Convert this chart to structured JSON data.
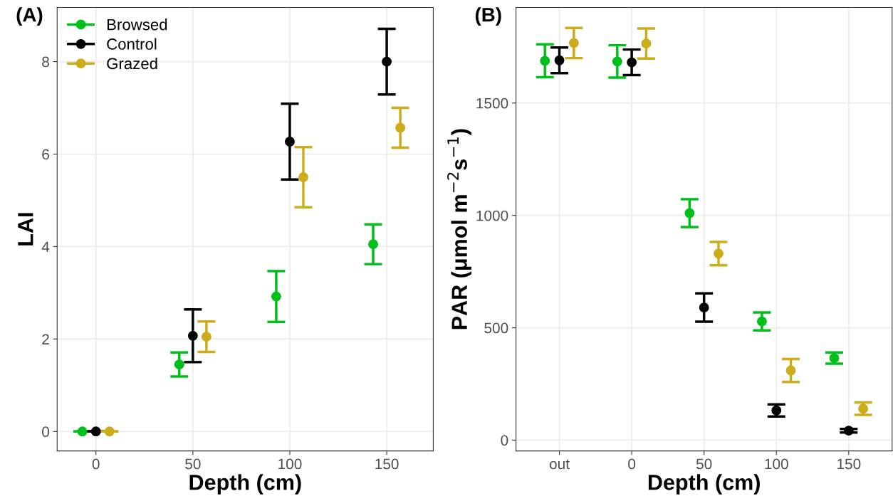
{
  "chart_data": [
    {
      "type": "scatter",
      "title": "(A)",
      "xlabel": "Depth (cm)",
      "ylabel": "LAI",
      "xlim": [
        -20,
        174
      ],
      "xticks": [
        0,
        50,
        100,
        150
      ],
      "ylim": [
        -0.42,
        9.17
      ],
      "yticks": [
        0,
        2,
        4,
        6,
        8
      ],
      "grid": true,
      "legend": "top left",
      "marker": "circle",
      "series": [
        {
          "name": "Browsed",
          "color": "#00bf1a",
          "x": [
            -7,
            43,
            93,
            143
          ],
          "values": [
            0,
            1.45,
            2.92,
            4.05
          ],
          "errors": [
            0,
            0.26,
            0.55,
            0.43
          ]
        },
        {
          "name": "Control",
          "color": "#000000",
          "x": [
            0,
            50,
            100,
            150
          ],
          "values": [
            0,
            2.07,
            6.27,
            8.0
          ],
          "errors": [
            0,
            0.57,
            0.82,
            0.71
          ]
        },
        {
          "name": "Grazed",
          "color": "#ccac1a",
          "x": [
            7,
            57,
            107,
            157
          ],
          "values": [
            0,
            2.05,
            5.5,
            6.57
          ],
          "errors": [
            0,
            0.33,
            0.65,
            0.43
          ]
        }
      ]
    },
    {
      "type": "scatter",
      "title": "(B)",
      "xlabel": "Depth (cm)",
      "ylabel": "PAR (μmol m$^{−2}$s$^{−1}$)",
      "categories": [
        "out",
        "0",
        "50",
        "100",
        "150"
      ],
      "ylim": [
        -48,
        1925
      ],
      "yticks": [
        0,
        500,
        1000,
        1500
      ],
      "grid": true,
      "legend": false,
      "marker": "circle",
      "series": [
        {
          "color": "#00bf1a",
          "values": [
            1688,
            1685,
            1010,
            528,
            365
          ],
          "errors": [
            73,
            72,
            62,
            40,
            25
          ]
        },
        {
          "color": "#000000",
          "values": [
            1690,
            1681,
            590,
            132,
            42
          ],
          "errors": [
            57,
            57,
            63,
            27,
            8
          ]
        },
        {
          "color": "#ccac1a",
          "values": [
            1767,
            1765,
            830,
            310,
            140
          ],
          "errors": [
            67,
            67,
            52,
            51,
            28
          ]
        }
      ]
    }
  ]
}
